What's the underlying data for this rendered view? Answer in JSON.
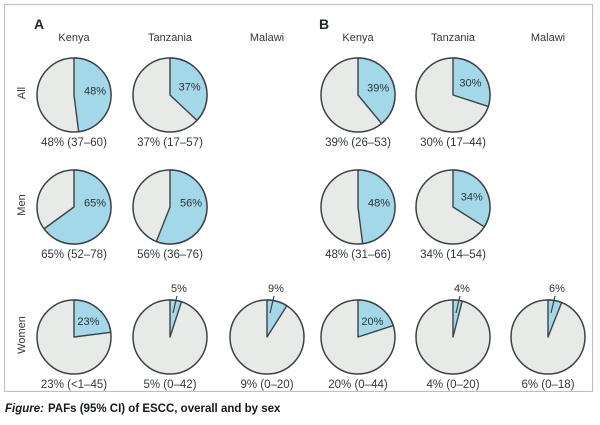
{
  "caption": {
    "prefix": "Figure:",
    "text": "PAFs (95% CI) of ESCC, overall and by sex"
  },
  "colors": {
    "slice_blue": "#a3d8e8",
    "pie_body": "#e7eae6",
    "pie_outline": "#3c4347",
    "label_text": "#2d3338",
    "border_pink": "#dfb0b8"
  },
  "chart_data": {
    "type": "pie",
    "unit": "%",
    "description": "Grid of pie charts: population attributable fractions (95% CI) of ESCC, overall and by sex, two panels A and B",
    "rows": [
      "All",
      "Men",
      "Women"
    ],
    "columns": [
      "Kenya",
      "Tanzania",
      "Malawi"
    ],
    "panels": [
      {
        "id": "A",
        "cells": [
          {
            "row": "All",
            "col": "Kenya",
            "value": 48,
            "label": "48%",
            "ci": "48% (37–60)"
          },
          {
            "row": "All",
            "col": "Tanzania",
            "value": 37,
            "label": "37%",
            "ci": "37% (17–57)"
          },
          {
            "row": "Men",
            "col": "Kenya",
            "value": 65,
            "label": "65%",
            "ci": "65% (52–78)"
          },
          {
            "row": "Men",
            "col": "Tanzania",
            "value": 56,
            "label": "56%",
            "ci": "56% (36–76)"
          },
          {
            "row": "Women",
            "col": "Kenya",
            "value": 23,
            "label": "23%",
            "ci": "23% (<1–45)"
          },
          {
            "row": "Women",
            "col": "Tanzania",
            "value": 5,
            "label": "5%",
            "ci": "5% (0–42)"
          },
          {
            "row": "Women",
            "col": "Malawi",
            "value": 9,
            "label": "9%",
            "ci": "9% (0–20)"
          }
        ]
      },
      {
        "id": "B",
        "cells": [
          {
            "row": "All",
            "col": "Kenya",
            "value": 39,
            "label": "39%",
            "ci": "39% (26–53)"
          },
          {
            "row": "All",
            "col": "Tanzania",
            "value": 30,
            "label": "30%",
            "ci": "30% (17–44)"
          },
          {
            "row": "Men",
            "col": "Kenya",
            "value": 48,
            "label": "48%",
            "ci": "48% (31–66)"
          },
          {
            "row": "Men",
            "col": "Tanzania",
            "value": 34,
            "label": "34%",
            "ci": "34% (14–54)"
          },
          {
            "row": "Women",
            "col": "Kenya",
            "value": 20,
            "label": "20%",
            "ci": "20% (0–44)"
          },
          {
            "row": "Women",
            "col": "Tanzania",
            "value": 4,
            "label": "4%",
            "ci": "4% (0–20)"
          },
          {
            "row": "Women",
            "col": "Malawi",
            "value": 6,
            "label": "6%",
            "ci": "6% (0–18)"
          }
        ]
      }
    ]
  }
}
